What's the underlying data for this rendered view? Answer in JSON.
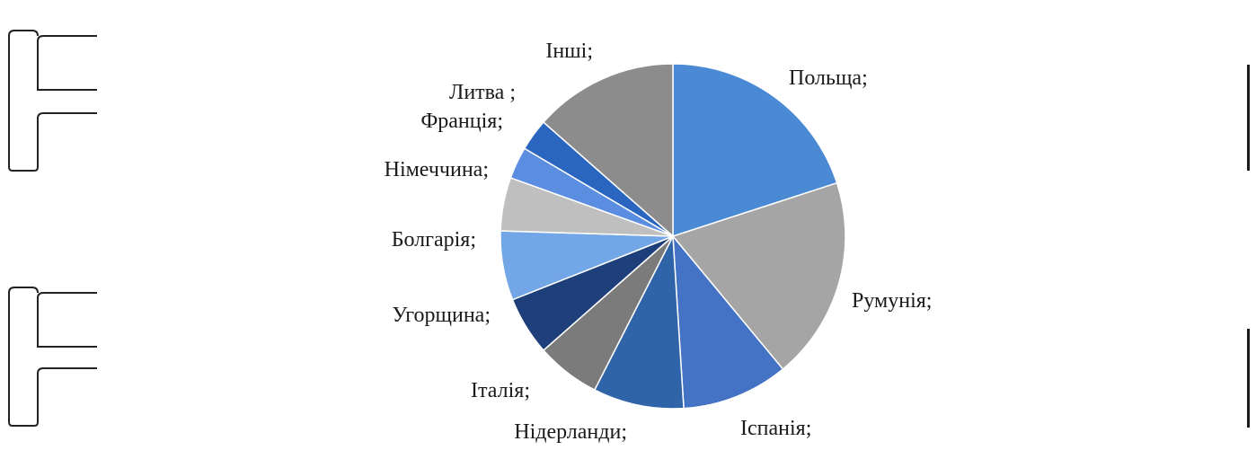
{
  "chart_data": {
    "type": "pie",
    "title": "",
    "legend": "none",
    "slices": [
      {
        "label": "Польща;",
        "value": 20,
        "color": "#4a8ad4"
      },
      {
        "label": "Румунія;",
        "value": 19,
        "color": "#a5a5a5"
      },
      {
        "label": "Іспанія;",
        "value": 10,
        "color": "#4472c4"
      },
      {
        "label": "Нідерланди;",
        "value": 8.5,
        "color": "#2f64a8"
      },
      {
        "label": "Італія;",
        "value": 6,
        "color": "#7b7b7b"
      },
      {
        "label": "Угорщина;",
        "value": 5.5,
        "color": "#1f3f7a"
      },
      {
        "label": "Болгарія;",
        "value": 6.5,
        "color": "#72a6e6"
      },
      {
        "label": "Німеччина;",
        "value": 5,
        "color": "#bfbfbf"
      },
      {
        "label": "Франція;",
        "value": 3,
        "color": "#5b8de0"
      },
      {
        "label": "Литва ;",
        "value": 3,
        "color": "#2a66c0"
      },
      {
        "label": "Інші;",
        "value": 13.5,
        "color": "#8c8c8c"
      }
    ]
  }
}
